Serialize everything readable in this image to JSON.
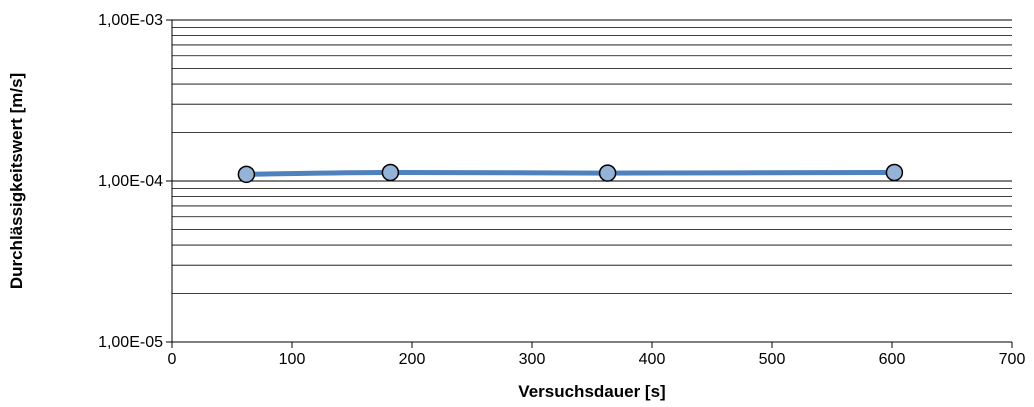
{
  "chart_data": {
    "type": "line",
    "xlabel": "Versuchsdauer [s]",
    "ylabel": "Durchlässigkeitswert [m/s]",
    "x_scale": "linear",
    "y_scale": "log",
    "xlim": [
      0,
      700
    ],
    "ylim": [
      1e-05,
      0.001
    ],
    "x_ticks": [
      0,
      100,
      200,
      300,
      400,
      500,
      600,
      700
    ],
    "x_tick_labels": [
      "0",
      "100",
      "200",
      "300",
      "400",
      "500",
      "600",
      "700"
    ],
    "y_ticks": [
      1e-05,
      0.0001,
      0.001
    ],
    "y_tick_labels": [
      "1,00E-05",
      "1,00E-04",
      "1,00E-03"
    ],
    "grid": {
      "x": false,
      "y_major": true,
      "y_minor": true
    },
    "legend": "none",
    "series": [
      {
        "x": [
          62,
          182,
          363,
          602
        ],
        "y": [
          0.00011,
          0.000113,
          0.000112,
          0.000113
        ],
        "smooth": true,
        "color": "#4f81bd",
        "marker_fill": "#95b3d7",
        "marker_stroke": "#000000"
      }
    ]
  }
}
